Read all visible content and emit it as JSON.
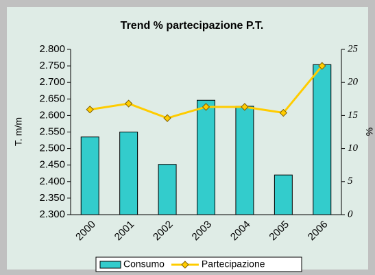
{
  "chart_data": {
    "type": "combo",
    "title": "Trend % partecipazione P.T.",
    "y_label": "T. m/m",
    "y2_label": "%",
    "categories": [
      "2000",
      "2001",
      "2002",
      "2003",
      "2004",
      "2005",
      "2006"
    ],
    "series": [
      {
        "name": "Consumo",
        "type": "bar",
        "axis": "y",
        "color": "#33cccc",
        "values": [
          2535,
          2550,
          2452,
          2646,
          2628,
          2420,
          2754
        ]
      },
      {
        "name": "Partecipazione",
        "type": "line",
        "axis": "y2",
        "color": "#ffcc00",
        "values": [
          15.9,
          16.8,
          14.6,
          16.3,
          16.3,
          15.4,
          22.5
        ]
      }
    ],
    "ylim": [
      2300,
      2800
    ],
    "yticks": [
      {
        "value": 2300,
        "label": "2.300"
      },
      {
        "value": 2350,
        "label": "2.350"
      },
      {
        "value": 2400,
        "label": "2.400"
      },
      {
        "value": 2450,
        "label": "2.450"
      },
      {
        "value": 2500,
        "label": "2.500"
      },
      {
        "value": 2550,
        "label": "2.550"
      },
      {
        "value": 2600,
        "label": "2.600"
      },
      {
        "value": 2650,
        "label": "2.650"
      },
      {
        "value": 2700,
        "label": "2.700"
      },
      {
        "value": 2750,
        "label": "2.750"
      },
      {
        "value": 2800,
        "label": "2.800"
      }
    ],
    "y2lim": [
      0,
      25
    ],
    "y2ticks": [
      0,
      5,
      10,
      15,
      20,
      25
    ],
    "legend": "bottom"
  }
}
